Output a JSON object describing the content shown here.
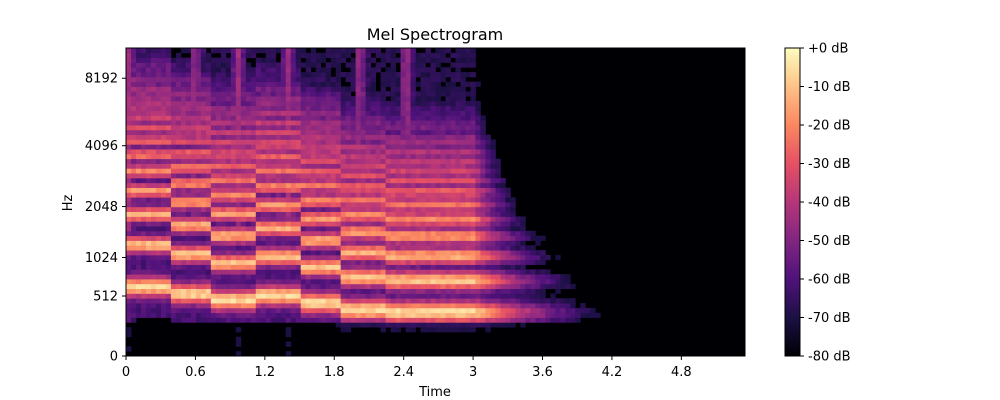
{
  "chart_data": {
    "type": "heatmap",
    "title": "Mel Spectrogram",
    "xlabel": "Time",
    "ylabel": "Hz",
    "x_ticks": [
      "0",
      "0.6",
      "1.2",
      "1.8",
      "2.4",
      "3",
      "3.6",
      "4.2",
      "4.8"
    ],
    "x_tick_values": [
      0,
      0.6,
      1.2,
      1.8,
      2.4,
      3.0,
      3.6,
      4.2,
      4.8
    ],
    "xlim": [
      0,
      5.35
    ],
    "y_ticks": [
      "0",
      "512",
      "1024",
      "2048",
      "4096",
      "8192"
    ],
    "y_tick_values": [
      0,
      512,
      1024,
      2048,
      4096,
      8192
    ],
    "ylim": [
      0,
      11025
    ],
    "y_scale": "mel",
    "colormap": "magma",
    "colorbar": {
      "ticks": [
        "+0 dB",
        "-10 dB",
        "-20 dB",
        "-30 dB",
        "-40 dB",
        "-50 dB",
        "-60 dB",
        "-70 dB",
        "-80 dB"
      ],
      "values": [
        0,
        -10,
        -20,
        -30,
        -40,
        -50,
        -60,
        -70,
        -80
      ],
      "range": [
        -80,
        0
      ]
    },
    "notes": {
      "onsets_s": [
        0.0,
        0.58,
        0.95,
        1.38,
        2.0,
        2.4
      ],
      "fundamentals_hz": [
        620,
        540,
        470,
        520,
        440,
        370,
        350,
        350
      ],
      "sound_end_s": 3.0,
      "decay_end_s": 4.3
    }
  }
}
